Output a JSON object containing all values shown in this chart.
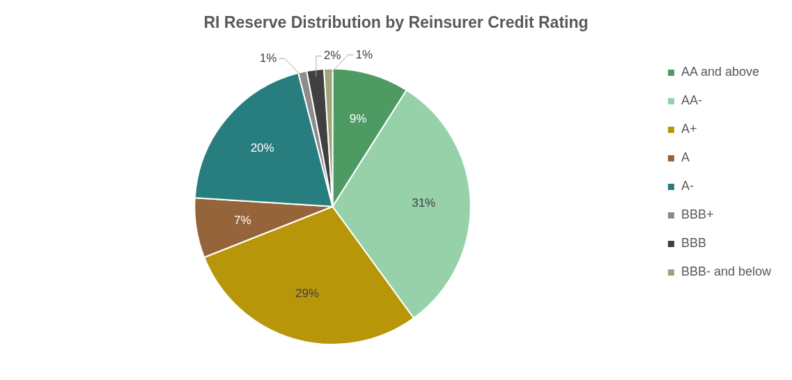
{
  "chart_data": {
    "type": "pie",
    "title": "RI Reserve Distribution by Reinsurer Credit Rating",
    "categories": [
      "AA and above",
      "AA-",
      "A+",
      "A",
      "A-",
      "BBB+",
      "BBB",
      "BBB- and below"
    ],
    "values": [
      9,
      31,
      29,
      7,
      20,
      1,
      2,
      1
    ],
    "colors": [
      "#4e9a63",
      "#96d1a9",
      "#b8960a",
      "#95643a",
      "#287e7e",
      "#8c8c8c",
      "#404040",
      "#a3a37a"
    ],
    "value_labels": [
      "9%",
      "31%",
      "29%",
      "7%",
      "20%",
      "1%",
      "2%",
      "1%"
    ],
    "legend": "right"
  }
}
